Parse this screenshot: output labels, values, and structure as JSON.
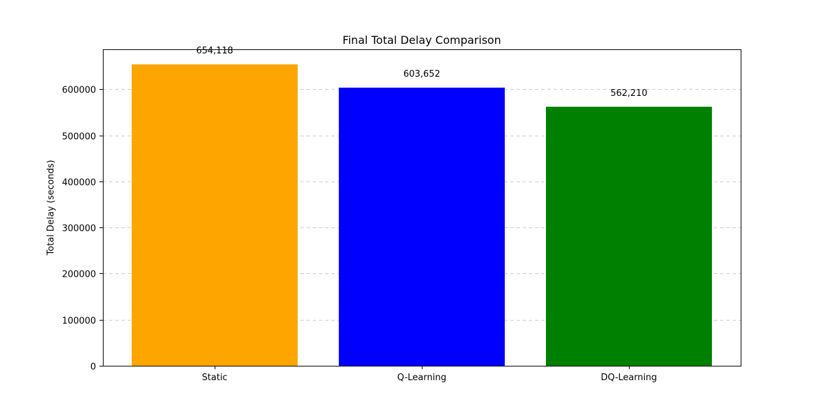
{
  "chart_data": {
    "type": "bar",
    "title": "Final Total Delay Comparison",
    "xlabel": "",
    "ylabel": "Total Delay (seconds)",
    "categories": [
      "Static",
      "Q-Learning",
      "DQ-Learning"
    ],
    "values": [
      654118,
      603652,
      562210
    ],
    "data_labels": [
      "654,118",
      "603,652",
      "562,210"
    ],
    "colors": [
      "#ffa500",
      "#0000ff",
      "#008000"
    ],
    "ylim": [
      0,
      686824
    ],
    "yticks": [
      0,
      100000,
      200000,
      300000,
      400000,
      500000,
      600000
    ],
    "ytick_labels": [
      "0",
      "100000",
      "200000",
      "300000",
      "400000",
      "500000",
      "600000"
    ],
    "grid": "y-dashed",
    "legend": "none"
  }
}
